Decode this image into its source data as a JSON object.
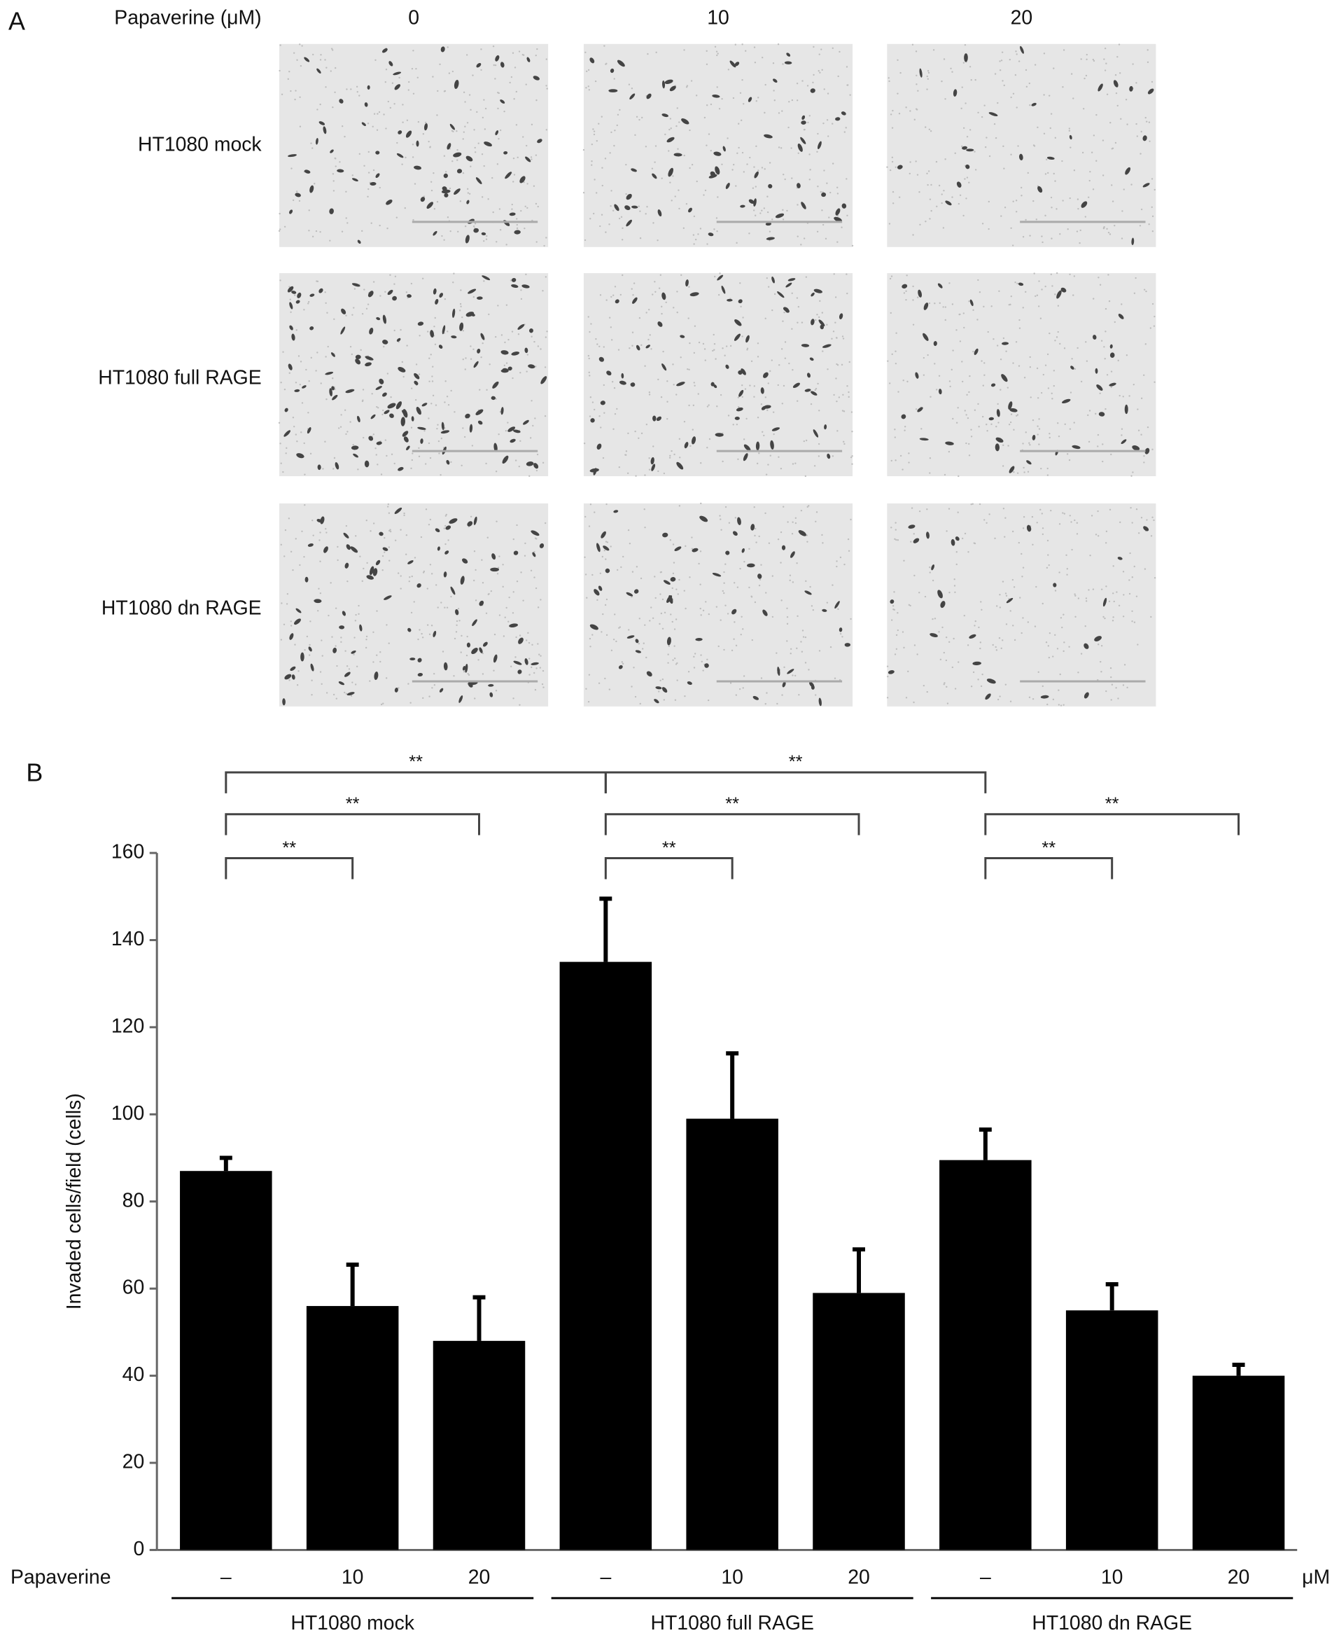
{
  "panel_a": {
    "label": "A",
    "treatment_label": "Papaverine (μM)",
    "doses": [
      "0",
      "10",
      "20"
    ],
    "rows": [
      "HT1080 mock",
      "HT1080 full RAGE",
      "HT1080 dn RAGE"
    ]
  },
  "chart_data": {
    "type": "bar",
    "panel_label": "B",
    "y_label": "Invaded cells/field (cells)",
    "x_row_label": "Papaverine",
    "x_unit": "μM",
    "categories": [
      "–",
      "10",
      "20",
      "–",
      "10",
      "20",
      "–",
      "10",
      "20"
    ],
    "groups": [
      "HT1080 mock",
      "HT1080 full RAGE",
      "HT1080 dn RAGE"
    ],
    "values": [
      87,
      56,
      48,
      135,
      99,
      59,
      89.5,
      55,
      40
    ],
    "errors": [
      3,
      9.5,
      10,
      14.5,
      15,
      10,
      7,
      6,
      2.5
    ],
    "color": "#000000",
    "ylim": [
      0,
      160
    ],
    "yticks": [
      0,
      20,
      40,
      60,
      80,
      100,
      120,
      140,
      160
    ],
    "brackets": [
      {
        "from": 0,
        "to": 3,
        "label": "**"
      },
      {
        "from": 3,
        "to": 6,
        "label": "**"
      },
      {
        "from": 0,
        "to": 2,
        "label": "**"
      },
      {
        "from": 3,
        "to": 5,
        "label": "**"
      },
      {
        "from": 6,
        "to": 8,
        "label": "**"
      },
      {
        "from": 0,
        "to": 1,
        "label": "**"
      },
      {
        "from": 3,
        "to": 4,
        "label": "**"
      },
      {
        "from": 6,
        "to": 7,
        "label": "**"
      }
    ]
  }
}
